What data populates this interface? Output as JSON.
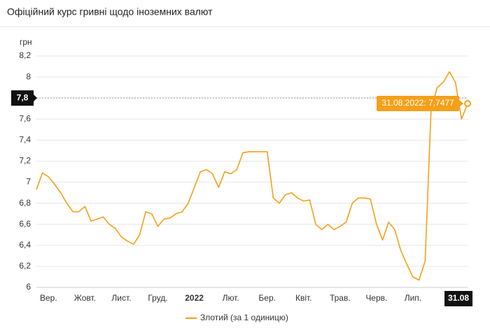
{
  "chart_data": {
    "type": "line",
    "title": "Офіційний курс гривні щодо іноземних валют",
    "y_label": "грн",
    "categories": [
      null,
      null,
      "Вер.",
      null,
      null,
      null,
      null,
      null,
      "Жовт.",
      null,
      null,
      null,
      null,
      null,
      "Лист.",
      null,
      null,
      null,
      null,
      null,
      "Груд.",
      null,
      null,
      null,
      null,
      null,
      "2022",
      null,
      null,
      null,
      null,
      null,
      "Лют.",
      null,
      null,
      null,
      null,
      null,
      "Бер.",
      null,
      null,
      null,
      null,
      null,
      "Квіт.",
      null,
      null,
      null,
      null,
      null,
      "Трав.",
      null,
      null,
      null,
      null,
      null,
      "Черв.",
      null,
      null,
      null,
      null,
      null,
      "Лип.",
      null,
      null,
      null,
      null,
      null,
      null,
      null,
      null,
      "31.08"
    ],
    "series": [
      {
        "name": "Злотий (за 1 одиницю)",
        "color": "#f5a01a",
        "values": [
          6.93,
          7.09,
          7.05,
          6.98,
          6.9,
          6.8,
          6.72,
          6.72,
          6.77,
          6.63,
          6.65,
          6.67,
          6.6,
          6.56,
          6.48,
          6.44,
          6.41,
          6.5,
          6.72,
          6.7,
          6.58,
          6.65,
          6.66,
          6.7,
          6.72,
          6.8,
          6.95,
          7.1,
          7.12,
          7.08,
          6.95,
          7.1,
          7.08,
          7.12,
          7.28,
          7.29,
          7.29,
          7.29,
          7.29,
          6.85,
          6.8,
          6.88,
          6.9,
          6.85,
          6.82,
          6.83,
          6.6,
          6.55,
          6.6,
          6.55,
          6.58,
          6.62,
          6.8,
          6.85,
          6.85,
          6.84,
          6.6,
          6.45,
          6.62,
          6.55,
          6.35,
          6.22,
          6.1,
          6.07,
          6.25,
          7.7,
          7.9,
          7.95,
          8.05,
          7.95,
          7.6,
          7.7477
        ]
      }
    ],
    "ylim": [
      6,
      8.2
    ],
    "yticks": [
      {
        "value": 6,
        "label": "6"
      },
      {
        "value": 6.2,
        "label": "6,2"
      },
      {
        "value": 6.4,
        "label": "6,4"
      },
      {
        "value": 6.6,
        "label": "6,6"
      },
      {
        "value": 6.8,
        "label": "6,8"
      },
      {
        "value": 7,
        "label": "7"
      },
      {
        "value": 7.2,
        "label": "7,2"
      },
      {
        "value": 7.4,
        "label": "7,4"
      },
      {
        "value": 7.6,
        "label": "7,6"
      },
      {
        "value": 7.8,
        "label": "7,8"
      },
      {
        "value": 8,
        "label": "8"
      },
      {
        "value": 8.2,
        "label": "8,2"
      }
    ],
    "grid": true,
    "crosshair": {
      "value": 7.8,
      "label": "7,8"
    },
    "tooltip": "31.08.2022: 7,7477",
    "legend": "bottom"
  }
}
